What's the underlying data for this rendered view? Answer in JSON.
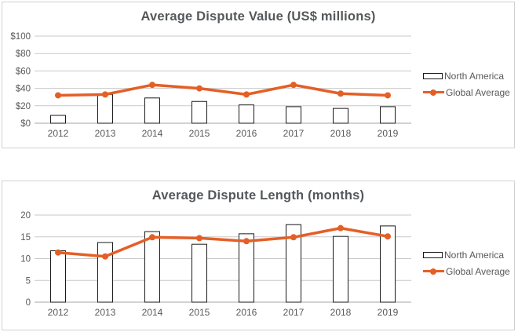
{
  "colors": {
    "line": "#e45f26",
    "bar_fill": "#ffffff",
    "bar_border": "#1a1a1a",
    "title_text": "#54585a",
    "axis_text": "#595959",
    "gridline": "#c9c9c9",
    "axis_line": "#a6a6a6",
    "panel_border": "#d2d2d2"
  },
  "chart_data": [
    {
      "type": "bar",
      "subtype": "bar+line combo",
      "title": "Average Dispute Value (US$ millions)",
      "categories": [
        "2012",
        "2013",
        "2014",
        "2015",
        "2016",
        "2017",
        "2018",
        "2019"
      ],
      "series": [
        {
          "name": "North America",
          "type": "bar",
          "values": [
            9,
            33,
            29,
            25,
            21,
            19,
            17,
            19
          ]
        },
        {
          "name": "Global Average",
          "type": "line",
          "values": [
            32,
            33,
            44,
            40,
            33,
            44,
            34,
            32
          ]
        }
      ],
      "xlabel": "",
      "ylabel": "",
      "ylim": [
        0,
        100
      ],
      "yticks": [
        {
          "v": 0,
          "label": "$0"
        },
        {
          "v": 20,
          "label": "$20"
        },
        {
          "v": 40,
          "label": "$40"
        },
        {
          "v": 60,
          "label": "$60"
        },
        {
          "v": 80,
          "label": "$80"
        },
        {
          "v": 100,
          "label": "$100"
        }
      ],
      "grid": true,
      "legend_position": "right"
    },
    {
      "type": "bar",
      "subtype": "bar+line combo",
      "title": "Average Dispute Length (months)",
      "categories": [
        "2012",
        "2013",
        "2014",
        "2015",
        "2016",
        "2017",
        "2018",
        "2019"
      ],
      "series": [
        {
          "name": "North America",
          "type": "bar",
          "values": [
            11.8,
            13.7,
            16.2,
            13.3,
            15.7,
            17.8,
            15.1,
            17.5
          ]
        },
        {
          "name": "Global Average",
          "type": "line",
          "values": [
            11.4,
            10.5,
            14.9,
            14.7,
            14.0,
            14.9,
            17.0,
            15.1
          ]
        }
      ],
      "xlabel": "",
      "ylabel": "",
      "ylim": [
        0,
        20
      ],
      "yticks": [
        {
          "v": 0,
          "label": "0"
        },
        {
          "v": 5,
          "label": "5"
        },
        {
          "v": 10,
          "label": "10"
        },
        {
          "v": 15,
          "label": "15"
        },
        {
          "v": 20,
          "label": "20"
        }
      ],
      "grid": true,
      "legend_position": "right"
    }
  ]
}
